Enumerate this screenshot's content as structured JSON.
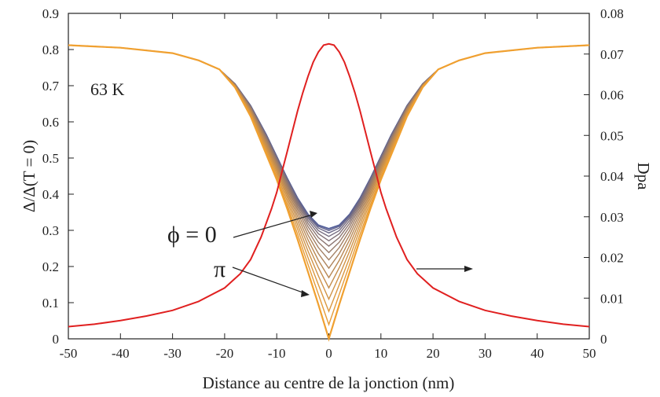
{
  "chart_data": {
    "type": "line",
    "title": "",
    "xlabel": "Distance au centre de la jonction (nm)",
    "ylabel": "Δ/Δ(T = 0)",
    "y2label": "Dpa",
    "xlim": [
      -50,
      50
    ],
    "ylim": [
      0,
      0.9
    ],
    "y2lim": [
      0,
      0.08
    ],
    "xticks": [
      "-50",
      "-40",
      "-30",
      "-20",
      "-10",
      "0",
      "10",
      "20",
      "30",
      "40",
      "50"
    ],
    "yticks": [
      "0",
      "0.1",
      "0.2",
      "0.3",
      "0.4",
      "0.5",
      "0.6",
      "0.7",
      "0.8",
      "0.9"
    ],
    "y2ticks": [
      "0",
      "0.01",
      "0.02",
      "0.03",
      "0.04",
      "0.05",
      "0.06",
      "0.07",
      "0.08"
    ],
    "grid": false,
    "legend": "none",
    "annotations": {
      "temperature": "63 K",
      "phi_zero": "ϕ = 0",
      "phi_pi": "π"
    },
    "gap_curves": {
      "description_axis": "left",
      "x": [
        -50,
        -40,
        -30,
        -25,
        -21,
        -18,
        -15,
        -12,
        -10,
        -8,
        -6,
        -4,
        -2,
        0,
        2,
        4,
        6,
        8,
        10,
        12,
        15,
        18,
        21,
        25,
        30,
        40,
        50
      ],
      "series": [
        {
          "phase_fraction": 0.0,
          "min_value": 0.305,
          "values": [
            0.812,
            0.805,
            0.79,
            0.77,
            0.745,
            0.705,
            0.645,
            0.565,
            0.505,
            0.445,
            0.39,
            0.345,
            0.315,
            0.305,
            0.315,
            0.345,
            0.39,
            0.445,
            0.505,
            0.565,
            0.645,
            0.705,
            0.745,
            0.77,
            0.79,
            0.805,
            0.812
          ]
        },
        {
          "phase_fraction": 0.5,
          "min_value": 0.2
        },
        {
          "phase_fraction": 1.0,
          "min_value": 0.0,
          "values": [
            0.812,
            0.805,
            0.79,
            0.77,
            0.745,
            0.695,
            0.615,
            0.51,
            0.44,
            0.36,
            0.275,
            0.185,
            0.095,
            0.0,
            0.095,
            0.185,
            0.275,
            0.36,
            0.44,
            0.51,
            0.615,
            0.695,
            0.745,
            0.77,
            0.79,
            0.805,
            0.812
          ]
        }
      ],
      "family_count": 16,
      "color_start": "#4a5a9e",
      "color_end": "#f0a030"
    },
    "dpa_curve": {
      "axis": "right",
      "color": "#e02020",
      "x": [
        -50,
        -45,
        -40,
        -35,
        -30,
        -25,
        -20,
        -17,
        -15,
        -13,
        -11,
        -10,
        -9,
        -8,
        -7,
        -6,
        -5,
        -4,
        -3,
        -2,
        -1,
        0,
        1,
        2,
        3,
        4,
        5,
        6,
        7,
        8,
        9,
        10,
        11,
        13,
        15,
        17,
        20,
        25,
        30,
        35,
        40,
        45,
        50
      ],
      "values": [
        0.003,
        0.0036,
        0.0045,
        0.0056,
        0.007,
        0.0092,
        0.0125,
        0.016,
        0.0195,
        0.025,
        0.032,
        0.036,
        0.041,
        0.046,
        0.051,
        0.056,
        0.0605,
        0.0645,
        0.068,
        0.0705,
        0.0722,
        0.0725,
        0.0722,
        0.0705,
        0.068,
        0.0645,
        0.0605,
        0.056,
        0.051,
        0.046,
        0.041,
        0.036,
        0.032,
        0.025,
        0.0195,
        0.016,
        0.0125,
        0.0092,
        0.007,
        0.0056,
        0.0045,
        0.0036,
        0.003
      ]
    }
  }
}
